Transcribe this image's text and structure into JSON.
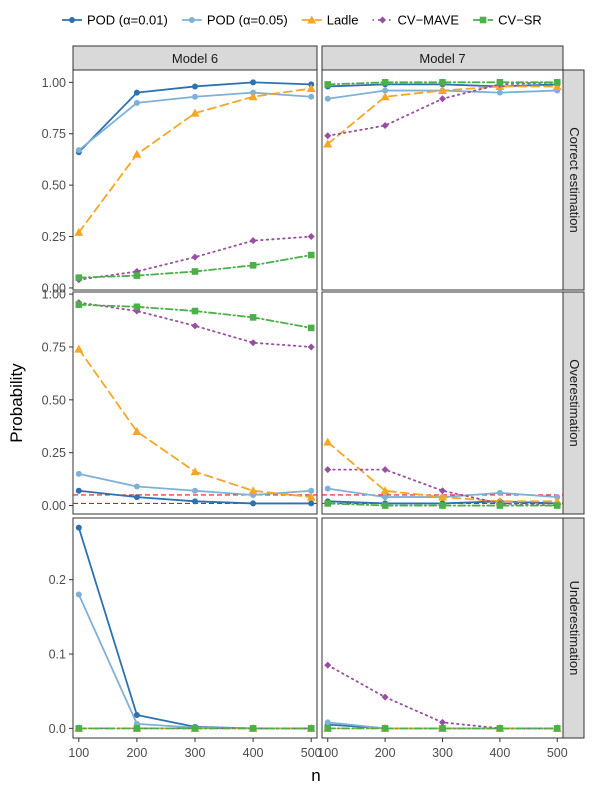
{
  "chart_data": {
    "type": "line",
    "xlabel": "n",
    "ylabel": "Probability",
    "x": [
      100,
      200,
      300,
      400,
      500
    ],
    "x_ticks": [
      "100",
      "200",
      "300",
      "400",
      "500"
    ],
    "xlim": [
      90,
      510
    ],
    "columns": [
      "Model 6",
      "Model 7"
    ],
    "rows": [
      {
        "label": "Correct estimation",
        "ylim": [
          -0.01,
          1.06
        ],
        "y_ticks": [
          "0.00",
          "0.25",
          "0.50",
          "0.75",
          "1.00"
        ],
        "y_tick_values": [
          0,
          0.25,
          0.5,
          0.75,
          1.0
        ],
        "ref_lines": []
      },
      {
        "label": "Overestimation",
        "ylim": [
          -0.04,
          1.01
        ],
        "y_ticks": [
          "0.00",
          "0.25",
          "0.50",
          "0.75",
          "1.00"
        ],
        "y_tick_values": [
          0,
          0.25,
          0.5,
          0.75,
          1.0
        ],
        "ref_lines": [
          0.01,
          0.05
        ]
      },
      {
        "label": "Underestimation",
        "ylim": [
          -0.013,
          0.283
        ],
        "y_ticks": [
          "0.0",
          "0.1",
          "0.2"
        ],
        "y_tick_values": [
          0,
          0.1,
          0.2
        ],
        "ref_lines": []
      }
    ],
    "ref_line_color": "#e31a1c",
    "legend_position": "top",
    "series": [
      {
        "name": "POD (α=0.01)",
        "color": "#2c72b0",
        "dash": "solid",
        "marker": "circle",
        "values": {
          "Model 6": {
            "Correct estimation": [
              0.66,
              0.95,
              0.98,
              1.0,
              0.99
            ],
            "Overestimation": [
              0.07,
              0.04,
              0.02,
              0.01,
              0.01
            ],
            "Underestimation": [
              0.27,
              0.018,
              0.002,
              0.0,
              0.0
            ]
          },
          "Model 7": {
            "Correct estimation": [
              0.98,
              0.99,
              0.99,
              0.98,
              0.99
            ],
            "Overestimation": [
              0.02,
              0.01,
              0.01,
              0.02,
              0.01
            ],
            "Underestimation": [
              0.005,
              0.0,
              0.0,
              0.0,
              0.0
            ]
          }
        }
      },
      {
        "name": "POD (α=0.05)",
        "color": "#7fb0d6",
        "dash": "solid",
        "marker": "circle",
        "values": {
          "Model 6": {
            "Correct estimation": [
              0.67,
              0.9,
              0.93,
              0.95,
              0.93
            ],
            "Overestimation": [
              0.15,
              0.09,
              0.07,
              0.05,
              0.07
            ],
            "Underestimation": [
              0.18,
              0.006,
              0.001,
              0.0,
              0.0
            ]
          },
          "Model 7": {
            "Correct estimation": [
              0.92,
              0.96,
              0.96,
              0.95,
              0.96
            ],
            "Overestimation": [
              0.08,
              0.04,
              0.04,
              0.06,
              0.04
            ],
            "Underestimation": [
              0.008,
              0.0,
              0.0,
              0.0,
              0.0
            ]
          }
        }
      },
      {
        "name": "Ladle",
        "color": "#f5a623",
        "dash": "longdash",
        "marker": "triangle",
        "values": {
          "Model 6": {
            "Correct estimation": [
              0.27,
              0.65,
              0.85,
              0.93,
              0.97
            ],
            "Overestimation": [
              0.74,
              0.35,
              0.16,
              0.07,
              0.04
            ],
            "Underestimation": [
              0.0,
              0.0,
              0.0,
              0.0,
              0.0
            ]
          },
          "Model 7": {
            "Correct estimation": [
              0.7,
              0.93,
              0.96,
              0.98,
              0.98
            ],
            "Overestimation": [
              0.3,
              0.07,
              0.04,
              0.02,
              0.02
            ],
            "Underestimation": [
              0.0,
              0.0,
              0.0,
              0.0,
              0.0
            ]
          }
        }
      },
      {
        "name": "CV−MAVE",
        "color": "#984ea3",
        "dash": "dotted",
        "marker": "diamond",
        "values": {
          "Model 6": {
            "Correct estimation": [
              0.04,
              0.08,
              0.15,
              0.23,
              0.25
            ],
            "Overestimation": [
              0.96,
              0.92,
              0.85,
              0.77,
              0.75
            ],
            "Underestimation": [
              0.0,
              0.0,
              0.0,
              0.0,
              0.0
            ]
          },
          "Model 7": {
            "Correct estimation": [
              0.74,
              0.79,
              0.92,
              0.99,
              1.0
            ],
            "Overestimation": [
              0.17,
              0.17,
              0.07,
              0.01,
              0.0
            ],
            "Underestimation": [
              0.085,
              0.042,
              0.008,
              0.0,
              0.0
            ]
          }
        }
      },
      {
        "name": "CV−SR",
        "color": "#4daf4a",
        "dash": "dotdash",
        "marker": "square",
        "values": {
          "Model 6": {
            "Correct estimation": [
              0.05,
              0.06,
              0.08,
              0.11,
              0.16
            ],
            "Overestimation": [
              0.95,
              0.94,
              0.92,
              0.89,
              0.84
            ],
            "Underestimation": [
              0.0,
              0.0,
              0.0,
              0.0,
              0.0
            ]
          },
          "Model 7": {
            "Correct estimation": [
              0.99,
              1.0,
              1.0,
              1.0,
              1.0
            ],
            "Overestimation": [
              0.01,
              0.0,
              0.0,
              0.0,
              0.0
            ],
            "Underestimation": [
              0.0,
              0.0,
              0.0,
              0.0,
              0.0
            ]
          }
        }
      }
    ]
  }
}
